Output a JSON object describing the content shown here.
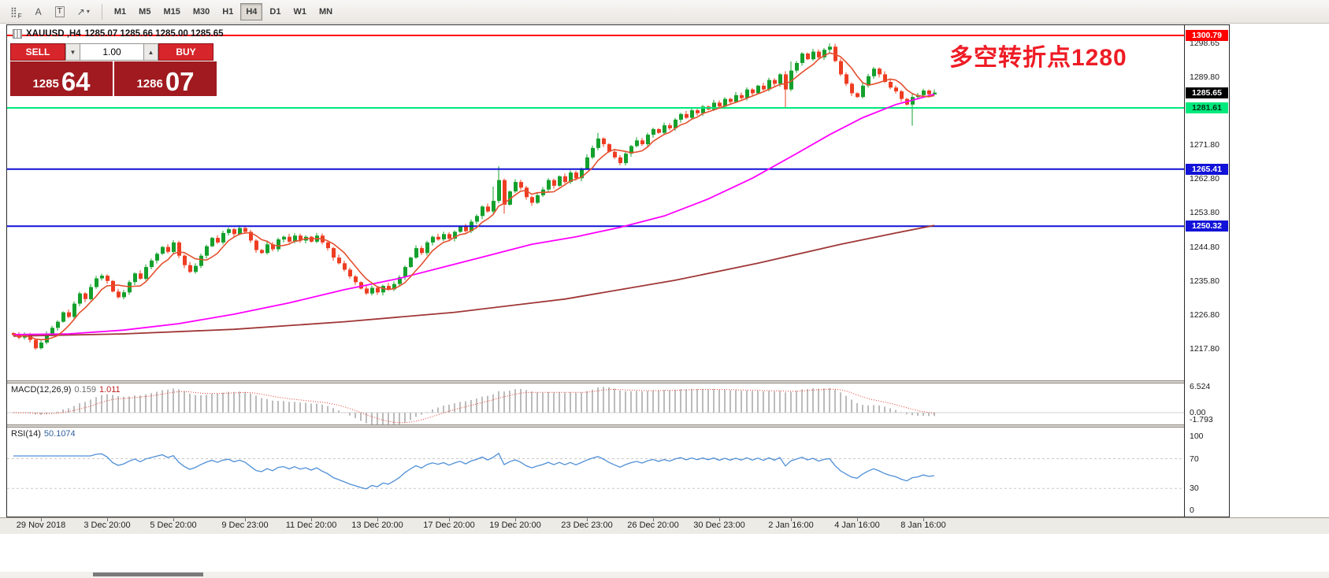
{
  "toolbar": {
    "tools": [
      {
        "id": "pattern-grid",
        "glyph": "⣿",
        "sub": "F"
      },
      {
        "id": "text-label",
        "glyph": "A"
      },
      {
        "id": "text-box",
        "glyph": "T",
        "boxed": true
      },
      {
        "id": "draw-trendline",
        "glyph": "↗",
        "caret": true
      }
    ],
    "timeframes": [
      "M1",
      "M5",
      "M15",
      "M30",
      "H1",
      "H4",
      "D1",
      "W1",
      "MN"
    ],
    "selected_timeframe": "H4"
  },
  "symbol_bar": {
    "title": "XAUUSD ,H4",
    "ohlc": "1285.07 1285.66 1285.00 1285.65"
  },
  "trade_panel": {
    "sell_label": "SELL",
    "buy_label": "BUY",
    "volume": "1.00",
    "sell_price_main": "1285",
    "sell_price_pips": "64",
    "buy_price_main": "1286",
    "buy_price_pips": "07",
    "button_bg": "#d6252b",
    "price_box_bg": "#a01a20"
  },
  "annotation": {
    "text": "多空转折点1280",
    "color": "#ee1c25"
  },
  "price_scale": {
    "labels": [
      {
        "text": "1298.65",
        "p": 1298.65
      },
      {
        "text": "1289.80",
        "p": 1289.8
      },
      {
        "text": "1280.80",
        "p": 1280.8
      },
      {
        "text": "1271.80",
        "p": 1271.8
      },
      {
        "text": "1262.80",
        "p": 1262.8
      },
      {
        "text": "1253.80",
        "p": 1253.8
      },
      {
        "text": "1244.80",
        "p": 1244.8
      },
      {
        "text": "1235.80",
        "p": 1235.8
      },
      {
        "text": "1226.80",
        "p": 1226.8
      },
      {
        "text": "1217.80",
        "p": 1217.8
      }
    ]
  },
  "hlines": [
    {
      "price": 1300.79,
      "color": "#fe0000",
      "thickness": 2,
      "label": "1300.79",
      "label_bg": "#fe0000",
      "label_fg": "#ffffff"
    },
    {
      "price": 1281.61,
      "color": "#00e97c",
      "thickness": 2,
      "label": "1281.61",
      "label_bg": "#00e97c",
      "label_fg": "#003317"
    },
    {
      "price": 1265.41,
      "color": "#1212d8",
      "thickness": 2,
      "label": "1265.41",
      "label_bg": "#1212d8",
      "label_fg": "#ffffff"
    },
    {
      "price": 1250.32,
      "color": "#1212d8",
      "thickness": 2,
      "label": "1250.32",
      "label_bg": "#1212d8",
      "label_fg": "#ffffff"
    }
  ],
  "current_price_tag": {
    "label": "1285.65",
    "price": 1285.65,
    "bg": "#000000",
    "fg": "#ffffff"
  },
  "macd_panel": {
    "name": "MACD(12,26,9)",
    "value_main": "0.159",
    "value_signal": "1.011",
    "axis": [
      {
        "text": "6.524",
        "v": 6.524
      },
      {
        "text": "0.00",
        "v": 0
      },
      {
        "text": "-1.793",
        "v": -1.793
      }
    ]
  },
  "rsi_panel": {
    "name": "RSI(14)",
    "value": "50.1074",
    "axis": [
      {
        "text": "100",
        "v": 100
      },
      {
        "text": "70",
        "v": 70
      },
      {
        "text": "30",
        "v": 30
      },
      {
        "text": "0",
        "v": 0
      }
    ],
    "levels": [
      70,
      30
    ],
    "color": "#4f8fd6"
  },
  "time_axis": {
    "labels": [
      {
        "i": 5,
        "text": "29 Nov 2018"
      },
      {
        "i": 17,
        "text": "3 Dec 20:00"
      },
      {
        "i": 29,
        "text": "5 Dec 20:00"
      },
      {
        "i": 42,
        "text": "9 Dec 23:00"
      },
      {
        "i": 54,
        "text": "11 Dec 20:00"
      },
      {
        "i": 66,
        "text": "13 Dec 20:00"
      },
      {
        "i": 79,
        "text": "17 Dec 20:00"
      },
      {
        "i": 91,
        "text": "19 Dec 20:00"
      },
      {
        "i": 104,
        "text": "23 Dec 23:00"
      },
      {
        "i": 116,
        "text": "26 Dec 20:00"
      },
      {
        "i": 128,
        "text": "30 Dec 23:00"
      },
      {
        "i": 141,
        "text": "2 Jan 16:00"
      },
      {
        "i": 153,
        "text": "4 Jan 16:00"
      },
      {
        "i": 165,
        "text": "8 Jan 16:00"
      }
    ]
  },
  "chart_data": {
    "type": "candlestick",
    "symbol": "XAUUSD",
    "timeframe": "H4",
    "ylim": [
      1209.5,
      1303.5
    ],
    "up_color": "#14a02c",
    "down_color": "#ee3d22",
    "open_first": 1222.0,
    "closes": [
      1221.5,
      1220.8,
      1221.6,
      1220.2,
      1218.0,
      1219.5,
      1221.8,
      1223.4,
      1225.0,
      1227.5,
      1226.3,
      1229.8,
      1232.5,
      1231.0,
      1234.2,
      1236.5,
      1237.2,
      1235.8,
      1233.0,
      1231.5,
      1232.8,
      1235.5,
      1237.8,
      1236.4,
      1239.5,
      1241.2,
      1243.0,
      1244.8,
      1243.5,
      1246.0,
      1242.5,
      1240.0,
      1238.2,
      1239.8,
      1242.5,
      1245.0,
      1247.2,
      1246.0,
      1248.5,
      1249.5,
      1248.2,
      1249.8,
      1248.8,
      1246.5,
      1244.0,
      1243.2,
      1245.5,
      1244.2,
      1246.8,
      1247.5,
      1246.2,
      1247.8,
      1246.5,
      1247.5,
      1246.2,
      1247.8,
      1246.0,
      1244.5,
      1242.0,
      1240.5,
      1238.8,
      1237.0,
      1235.5,
      1233.8,
      1232.5,
      1234.0,
      1232.8,
      1234.5,
      1233.6,
      1235.0,
      1236.8,
      1239.5,
      1242.0,
      1244.5,
      1243.2,
      1246.0,
      1247.5,
      1246.8,
      1248.2,
      1247.0,
      1248.8,
      1250.2,
      1249.0,
      1251.5,
      1253.0,
      1255.5,
      1254.2,
      1257.0,
      1262.5,
      1256.0,
      1259.5,
      1262.0,
      1260.5,
      1258.0,
      1256.5,
      1258.5,
      1260.0,
      1262.5,
      1261.0,
      1263.5,
      1262.0,
      1264.5,
      1263.0,
      1265.5,
      1268.5,
      1271.0,
      1273.5,
      1272.0,
      1270.0,
      1268.5,
      1267.0,
      1269.5,
      1271.5,
      1273.0,
      1272.0,
      1274.5,
      1276.0,
      1275.0,
      1277.0,
      1276.2,
      1278.5,
      1280.0,
      1279.0,
      1281.0,
      1280.2,
      1282.0,
      1281.2,
      1283.0,
      1282.0,
      1284.0,
      1283.2,
      1285.0,
      1284.2,
      1286.5,
      1285.5,
      1287.5,
      1286.5,
      1289.0,
      1288.0,
      1290.5,
      1286.5,
      1291.5,
      1293.5,
      1296.0,
      1294.5,
      1296.5,
      1295.0,
      1297.0,
      1297.8,
      1294.0,
      1290.5,
      1288.0,
      1285.5,
      1284.5,
      1287.5,
      1290.0,
      1292.0,
      1290.5,
      1288.5,
      1287.0,
      1286.0,
      1284.0,
      1282.5,
      1284.5,
      1285.0,
      1286.2,
      1285.2,
      1285.65
    ],
    "wick_overrides": {
      "4": {
        "l": 1217.6
      },
      "87": {
        "h": 1260.8
      },
      "88": {
        "h": 1266.2
      },
      "89": {
        "l": 1253.6
      },
      "106": {
        "h": 1275.0
      },
      "140": {
        "l": 1281.8
      },
      "141": {
        "h": 1293.9
      },
      "148": {
        "h": 1298.65
      },
      "163": {
        "l": 1276.9
      }
    },
    "ma_fast": {
      "color": "#e4502e",
      "period": 6
    },
    "ma_mid": {
      "color": "#ff00ff",
      "anchors": [
        [
          0,
          1221.6
        ],
        [
          10,
          1221.8
        ],
        [
          20,
          1222.8
        ],
        [
          30,
          1224.5
        ],
        [
          40,
          1227.0
        ],
        [
          50,
          1230.0
        ],
        [
          60,
          1233.5
        ],
        [
          70,
          1236.5
        ],
        [
          78,
          1239.5
        ],
        [
          86,
          1242.5
        ],
        [
          94,
          1245.5
        ],
        [
          102,
          1247.5
        ],
        [
          110,
          1250.0
        ],
        [
          118,
          1253.0
        ],
        [
          126,
          1257.5
        ],
        [
          134,
          1263.0
        ],
        [
          142,
          1269.5
        ],
        [
          148,
          1274.5
        ],
        [
          154,
          1279.0
        ],
        [
          160,
          1282.5
        ],
        [
          167,
          1285.2
        ]
      ]
    },
    "ma_slow": {
      "color": "#a03636",
      "anchors": [
        [
          0,
          1221.2
        ],
        [
          20,
          1221.8
        ],
        [
          40,
          1223.0
        ],
        [
          60,
          1225.0
        ],
        [
          80,
          1227.5
        ],
        [
          100,
          1231.0
        ],
        [
          120,
          1236.0
        ],
        [
          135,
          1240.5
        ],
        [
          150,
          1245.5
        ],
        [
          160,
          1248.5
        ],
        [
          167,
          1250.5
        ]
      ]
    },
    "macd": {
      "fast": 12,
      "slow": 26,
      "signal": 9,
      "hist_color": "#bcbcbc",
      "signal_color": "#e23a2e",
      "ylim": [
        -2.97,
        7.36
      ],
      "peak": 6.52
    },
    "rsi": {
      "period": 14,
      "ylim": [
        -8,
        112
      ]
    }
  }
}
